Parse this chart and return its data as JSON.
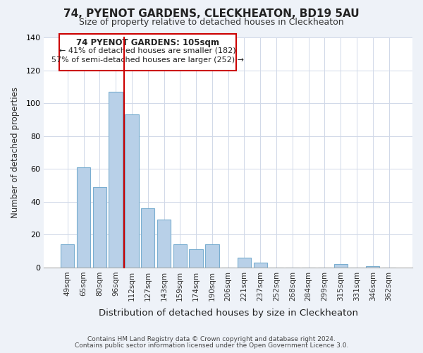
{
  "title": "74, PYENOT GARDENS, CLECKHEATON, BD19 5AU",
  "subtitle": "Size of property relative to detached houses in Cleckheaton",
  "xlabel": "Distribution of detached houses by size in Cleckheaton",
  "ylabel": "Number of detached properties",
  "bar_labels": [
    "49sqm",
    "65sqm",
    "80sqm",
    "96sqm",
    "112sqm",
    "127sqm",
    "143sqm",
    "159sqm",
    "174sqm",
    "190sqm",
    "206sqm",
    "221sqm",
    "237sqm",
    "252sqm",
    "268sqm",
    "284sqm",
    "299sqm",
    "315sqm",
    "331sqm",
    "346sqm",
    "362sqm"
  ],
  "bar_values": [
    14,
    61,
    49,
    107,
    93,
    36,
    29,
    14,
    11,
    14,
    0,
    6,
    3,
    0,
    0,
    0,
    0,
    2,
    0,
    1,
    0
  ],
  "bar_color": "#b8d0e8",
  "bar_edge_color": "#7aaed0",
  "ylim": [
    0,
    140
  ],
  "yticks": [
    0,
    20,
    40,
    60,
    80,
    100,
    120,
    140
  ],
  "annotation_title": "74 PYENOT GARDENS: 105sqm",
  "annotation_line1": "← 41% of detached houses are smaller (182)",
  "annotation_line2": "57% of semi-detached houses are larger (252) →",
  "property_bar_index": 3,
  "footer1": "Contains HM Land Registry data © Crown copyright and database right 2024.",
  "footer2": "Contains public sector information licensed under the Open Government Licence 3.0.",
  "bg_color": "#eef2f8",
  "plot_bg_color": "#ffffff",
  "grid_color": "#d0d8e8",
  "red_line_color": "#cc0000",
  "ann_box_edge_color": "#cc0000"
}
